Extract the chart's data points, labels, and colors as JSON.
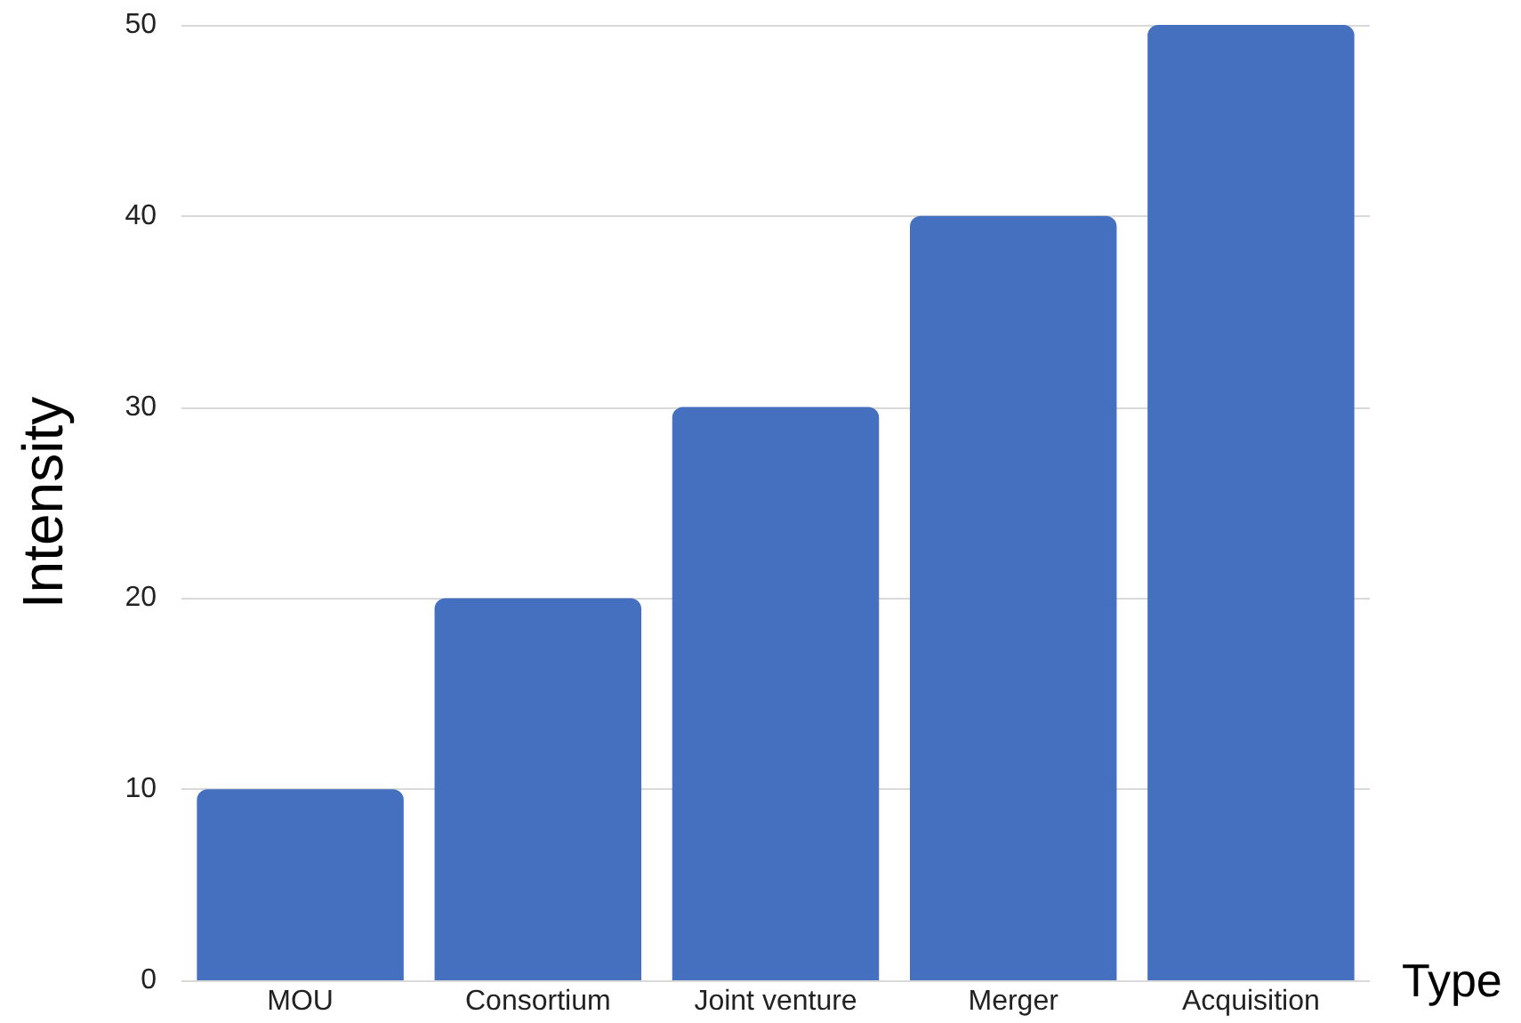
{
  "chart_data": {
    "type": "bar",
    "xlabel": "Type",
    "ylabel": "Intensity",
    "categories": [
      "MOU",
      "Consortium",
      "Joint venture",
      "Merger",
      "Acquisition"
    ],
    "values": [
      10,
      20,
      30,
      40,
      50
    ],
    "color": "#4470bf",
    "ylim": [
      0,
      50
    ],
    "yticks": [
      0,
      10,
      20,
      30,
      40,
      50
    ],
    "grid": "y"
  }
}
